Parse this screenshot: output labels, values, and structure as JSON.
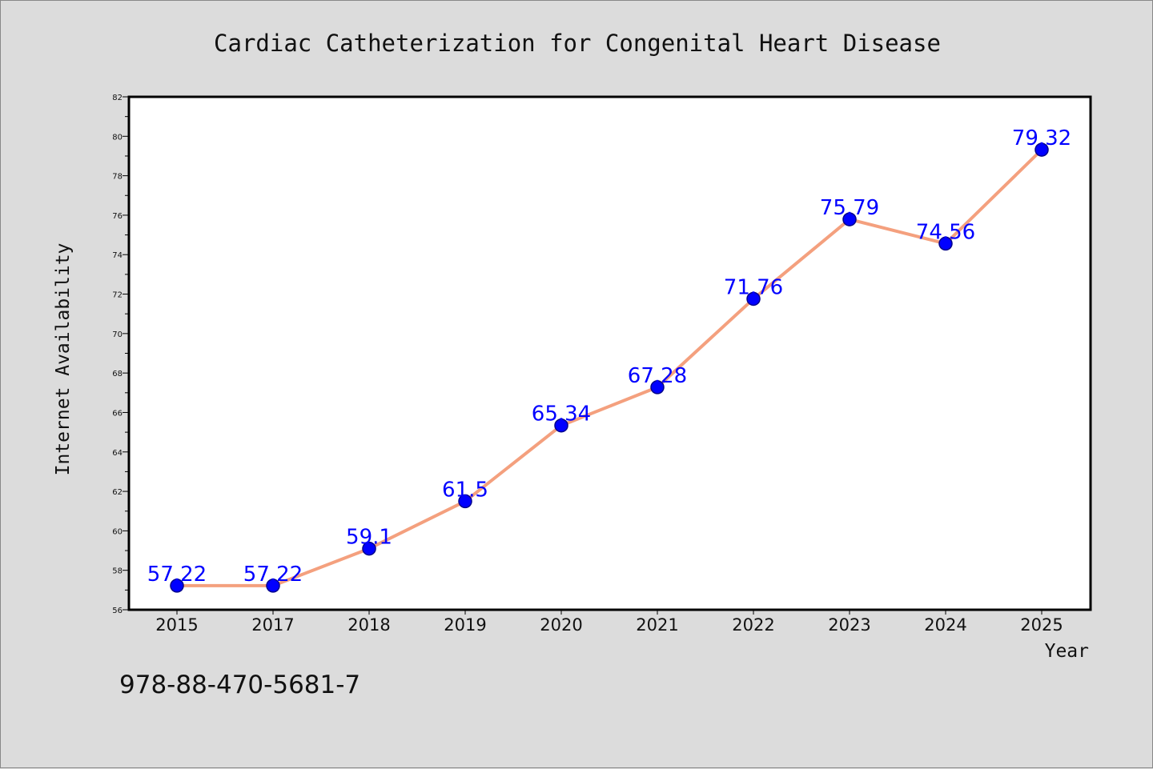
{
  "footer": {
    "code": "978-88-470-5681-7"
  },
  "colors": {
    "background": "#dcdcdc",
    "plot_background": "#ffffff",
    "line": "#f4a07e",
    "marker": "#0000ff",
    "marker_edge": "#00008b",
    "data_label": "#0000ff"
  },
  "chart_data": {
    "type": "line",
    "title": "Cardiac Catheterization for Congenital Heart Disease",
    "xlabel": "Year",
    "ylabel": "Internet Availability",
    "categories": [
      "2015",
      "2017",
      "2018",
      "2019",
      "2020",
      "2021",
      "2022",
      "2023",
      "2024",
      "2025"
    ],
    "series": [
      {
        "values": [
          57.22,
          57.22,
          59.1,
          61.5,
          65.34,
          67.28,
          71.76,
          75.79,
          74.56,
          79.32
        ],
        "labels": [
          "57.22",
          "57.22",
          "59.1",
          "61.5",
          "65.34",
          "67.28",
          "71.76",
          "75.79",
          "74.56",
          "79.32"
        ]
      }
    ],
    "ylim": [
      56,
      82
    ],
    "yticks": [
      56,
      58,
      60,
      62,
      64,
      66,
      68,
      70,
      72,
      74,
      76,
      78,
      80,
      82
    ],
    "grid": false,
    "legend": "none"
  }
}
